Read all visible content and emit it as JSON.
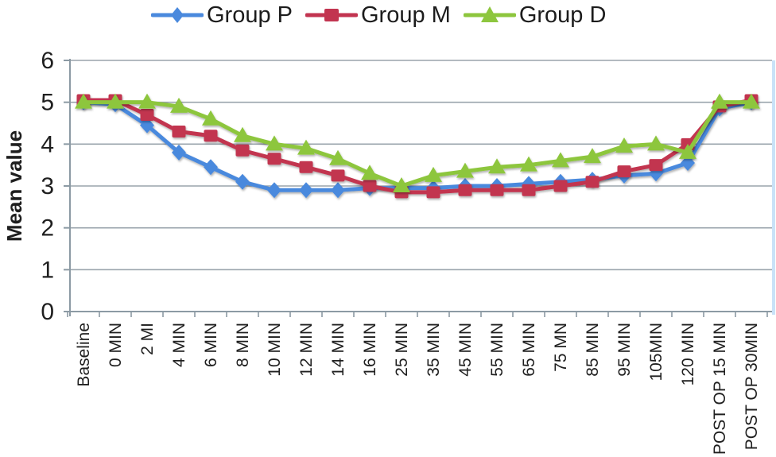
{
  "chart_data": {
    "type": "line",
    "title": "",
    "xlabel": "",
    "ylabel": "Mean value",
    "ylim": [
      0,
      6
    ],
    "y_ticks": [
      0,
      1,
      2,
      3,
      4,
      5,
      6
    ],
    "grid": true,
    "legend_position": "top",
    "categories": [
      "Baseline",
      "0 MIN",
      "2 MI",
      "4 MIN",
      "6 MIN",
      "8 MIN",
      "10 MIN",
      "12 MIN",
      "14 MIN",
      "16 MIN",
      "25 MIN",
      "35 MIN",
      "45 MIN",
      "55 MIN",
      "65 MIN",
      "75 MN",
      "85 MIN",
      "95 MIN",
      "105MIN",
      "120 MIN",
      "POST OP 15 MIN",
      "POST OP 30MIN"
    ],
    "series": [
      {
        "name": "Group P",
        "marker": "diamond",
        "color": "#4a89dd",
        "values": [
          5.0,
          4.95,
          4.45,
          3.8,
          3.45,
          3.1,
          2.9,
          2.9,
          2.9,
          2.95,
          2.95,
          2.95,
          3.0,
          3.0,
          3.05,
          3.1,
          3.15,
          3.25,
          3.3,
          3.55,
          4.85,
          5.0
        ]
      },
      {
        "name": "Group M",
        "marker": "square",
        "color": "#c23450",
        "values": [
          5.05,
          5.05,
          4.7,
          4.3,
          4.2,
          3.85,
          3.65,
          3.45,
          3.25,
          3.0,
          2.85,
          2.85,
          2.9,
          2.9,
          2.9,
          3.0,
          3.1,
          3.35,
          3.5,
          4.0,
          4.9,
          5.05
        ]
      },
      {
        "name": "Group D",
        "marker": "triangle",
        "color": "#8dc63e",
        "values": [
          5.0,
          5.0,
          5.0,
          4.9,
          4.6,
          4.2,
          4.0,
          3.9,
          3.65,
          3.3,
          3.0,
          3.25,
          3.35,
          3.45,
          3.5,
          3.6,
          3.7,
          3.95,
          4.0,
          3.8,
          5.0,
          5.0
        ]
      }
    ]
  },
  "style": {
    "grid_color": "#9aa4ac",
    "axis_color": "#8c9aa4",
    "axis_glow_color": "#a9d2f2",
    "plot_right_edge_color": "#c9e2f8",
    "text_color": "#1f1f1f"
  }
}
